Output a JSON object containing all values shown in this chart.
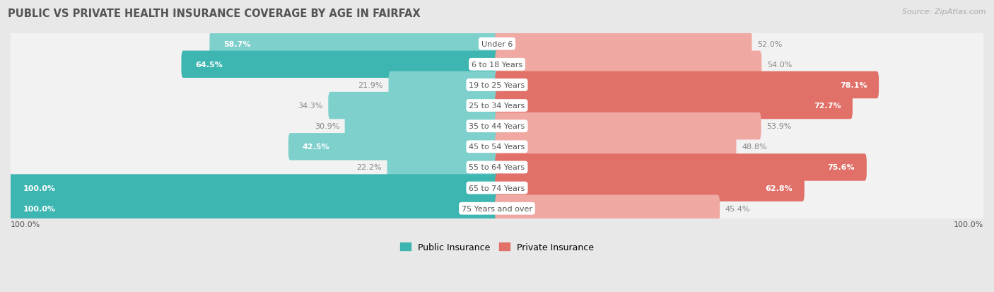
{
  "title": "PUBLIC VS PRIVATE HEALTH INSURANCE COVERAGE BY AGE IN FAIRFAX",
  "source": "Source: ZipAtlas.com",
  "categories": [
    "Under 6",
    "6 to 18 Years",
    "19 to 25 Years",
    "25 to 34 Years",
    "35 to 44 Years",
    "45 to 54 Years",
    "55 to 64 Years",
    "65 to 74 Years",
    "75 Years and over"
  ],
  "public_values": [
    58.7,
    64.5,
    21.9,
    34.3,
    30.9,
    42.5,
    22.2,
    100.0,
    100.0
  ],
  "private_values": [
    52.0,
    54.0,
    78.1,
    72.7,
    53.9,
    48.8,
    75.6,
    62.8,
    45.4
  ],
  "public_color_strong": "#3db5b0",
  "public_color_weak": "#7ed0cc",
  "private_color_strong": "#e07068",
  "private_color_weak": "#f0a8a2",
  "bg_color": "#e8e8e8",
  "row_bg_color": "#f2f2f2",
  "row_border_color": "#d8d8d8",
  "title_color": "#555555",
  "label_color": "#555555",
  "value_color_dark": "#888888",
  "value_color_light": "#ffffff",
  "max_value": 100.0,
  "strong_threshold": 60.0,
  "legend_labels": [
    "Public Insurance",
    "Private Insurance"
  ]
}
